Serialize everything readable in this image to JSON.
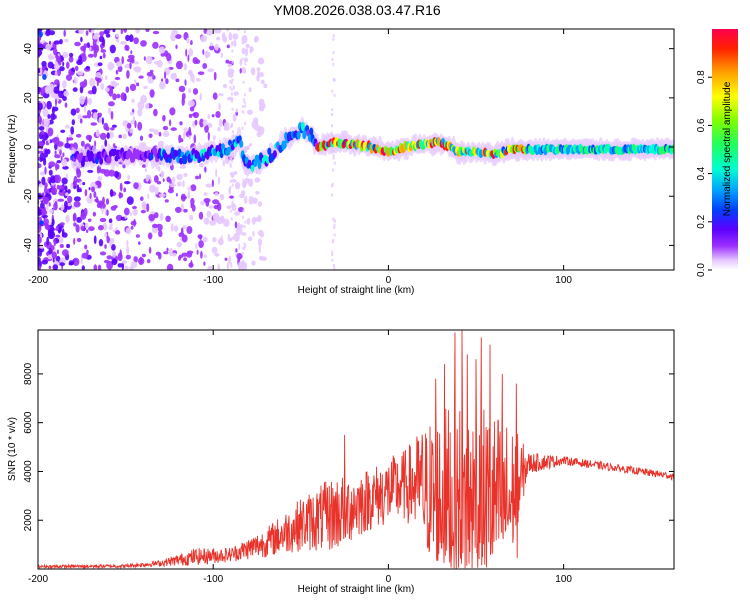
{
  "title": "YM08.2026.038.03.47.R16",
  "chart_data": [
    {
      "type": "heatmap",
      "id": "spectrogram",
      "xlabel": "Height of straight line (km)",
      "ylabel": "Frequency (Hz)",
      "xlim": [
        -200,
        163
      ],
      "ylim": [
        -50,
        48
      ],
      "xticks": [
        -200,
        -100,
        0,
        100
      ],
      "yticks": [
        -40,
        -20,
        0,
        20,
        40
      ],
      "colorbar": {
        "label": "Normalized spectral amplitude",
        "range": [
          0,
          1
        ],
        "ticks": [
          0.0,
          0.2,
          0.4,
          0.6,
          0.8
        ],
        "tick_labels": [
          "0.0",
          "0.2",
          "0.4",
          "0.6",
          "0.8"
        ],
        "colors": [
          "#ffffff",
          "#e6c8ff",
          "#9b30ff",
          "#5a00ff",
          "#0040ff",
          "#00a0ff",
          "#00ffd0",
          "#20ff60",
          "#80ff00",
          "#ffff00",
          "#ffa000",
          "#ff2000",
          "#ff0050"
        ]
      },
      "ridge": [
        {
          "x": -180,
          "y": -5
        },
        {
          "x": -160,
          "y": -4
        },
        {
          "x": -140,
          "y": -3
        },
        {
          "x": -120,
          "y": -4
        },
        {
          "x": -100,
          "y": -2
        },
        {
          "x": -90,
          "y": 0
        },
        {
          "x": -85,
          "y": 3
        },
        {
          "x": -82,
          "y": -8
        },
        {
          "x": -70,
          "y": -5
        },
        {
          "x": -60,
          "y": 2
        },
        {
          "x": -50,
          "y": 7
        },
        {
          "x": -45,
          "y": 6
        },
        {
          "x": -40,
          "y": 0
        },
        {
          "x": -30,
          "y": 2
        },
        {
          "x": -20,
          "y": 1
        },
        {
          "x": -10,
          "y": 0
        },
        {
          "x": 0,
          "y": -2
        },
        {
          "x": 10,
          "y": 0
        },
        {
          "x": 20,
          "y": 1
        },
        {
          "x": 30,
          "y": 2
        },
        {
          "x": 40,
          "y": -2
        },
        {
          "x": 50,
          "y": -2
        },
        {
          "x": 60,
          "y": -3
        },
        {
          "x": 70,
          "y": -1
        },
        {
          "x": 80,
          "y": -1
        },
        {
          "x": 100,
          "y": -1
        },
        {
          "x": 120,
          "y": -1
        },
        {
          "x": 140,
          "y": -1
        },
        {
          "x": 163,
          "y": -1
        }
      ]
    },
    {
      "type": "line",
      "id": "snr",
      "xlabel": "Height of straight line (km)",
      "ylabel": "SNR (10 * v/v)",
      "xlim": [
        -200,
        163
      ],
      "ylim": [
        0,
        9800
      ],
      "xticks": [
        -200,
        -100,
        0,
        100
      ],
      "yticks": [
        2000,
        4000,
        6000,
        8000
      ],
      "series": [
        {
          "name": "SNR",
          "color": "#e8322a",
          "envelope": [
            {
              "x": -200,
              "base": 80,
              "spread": 120
            },
            {
              "x": -150,
              "base": 100,
              "spread": 150
            },
            {
              "x": -130,
              "base": 200,
              "spread": 250
            },
            {
              "x": -110,
              "base": 400,
              "spread": 700
            },
            {
              "x": -90,
              "base": 500,
              "spread": 600
            },
            {
              "x": -70,
              "base": 900,
              "spread": 1200
            },
            {
              "x": -50,
              "base": 1500,
              "spread": 2200
            },
            {
              "x": -30,
              "base": 1800,
              "spread": 3200
            },
            {
              "x": -10,
              "base": 2500,
              "spread": 2600
            },
            {
              "x": 10,
              "base": 3000,
              "spread": 3000
            },
            {
              "x": 25,
              "base": 2500,
              "spread": 6000
            },
            {
              "x": 40,
              "base": 2200,
              "spread": 7500
            },
            {
              "x": 55,
              "base": 2300,
              "spread": 7000
            },
            {
              "x": 70,
              "base": 2500,
              "spread": 5500
            },
            {
              "x": 80,
              "base": 4200,
              "spread": 900
            },
            {
              "x": 100,
              "base": 4400,
              "spread": 350
            },
            {
              "x": 130,
              "base": 4100,
              "spread": 300
            },
            {
              "x": 163,
              "base": 3750,
              "spread": 300
            }
          ],
          "spikes": [
            {
              "x": -25,
              "y": 5500
            },
            {
              "x": 27,
              "y": 7800
            },
            {
              "x": 32,
              "y": 8400
            },
            {
              "x": 38,
              "y": 9700
            },
            {
              "x": 42,
              "y": 9800
            },
            {
              "x": 45,
              "y": 8800
            },
            {
              "x": 50,
              "y": 8600
            },
            {
              "x": 53,
              "y": 9500
            },
            {
              "x": 58,
              "y": 9200
            },
            {
              "x": 65,
              "y": 8000
            },
            {
              "x": 73,
              "y": 7600
            }
          ]
        }
      ]
    }
  ]
}
